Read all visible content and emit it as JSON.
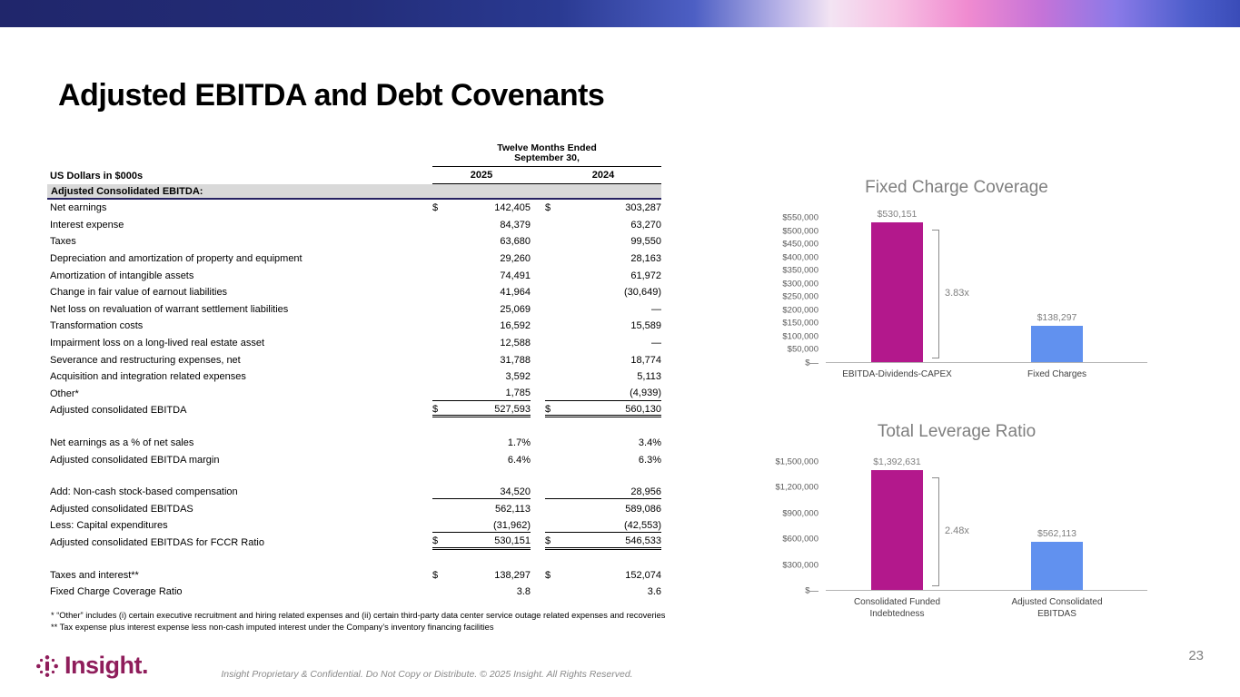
{
  "slide": {
    "title": "Adjusted EBITDA and Debt Covenants",
    "page_number": "23",
    "footer_text": "Insight Proprietary & Confidential. Do Not Copy or Distribute. © 2025 Insight. All Rights Reserved.",
    "logo_text": "Insight."
  },
  "colors": {
    "bar_magenta": "#b3188c",
    "bar_blue": "#6191ef",
    "logo_maroon": "#8f1d5b",
    "section_band": "#d9d9d9",
    "section_rule": "#262262"
  },
  "table": {
    "period_header": [
      "Twelve Months Ended",
      "September 30,"
    ],
    "units_label": "US Dollars in $000s",
    "years": [
      "2025",
      "2024"
    ],
    "rows": [
      {
        "type": "section",
        "label": "Adjusted Consolidated EBITDA:"
      },
      {
        "label": "Net earnings",
        "d25": "$",
        "v25": "142,405",
        "d24": "$",
        "v24": "303,287"
      },
      {
        "label": "Interest expense",
        "v25": "84,379",
        "v24": "63,270"
      },
      {
        "label": "Taxes",
        "v25": "63,680",
        "v24": "99,550"
      },
      {
        "label": "Depreciation and amortization of property and equipment",
        "v25": "29,260",
        "v24": "28,163"
      },
      {
        "label": "Amortization of intangible assets",
        "v25": "74,491",
        "v24": "61,972"
      },
      {
        "label": "Change in fair value of earnout liabilities",
        "v25": "41,964",
        "v24": "(30,649)"
      },
      {
        "label": "Net loss on revaluation of warrant settlement liabilities",
        "v25": "25,069",
        "v24": "—"
      },
      {
        "label": "Transformation costs",
        "v25": "16,592",
        "v24": "15,589"
      },
      {
        "label": "Impairment loss on a long-lived real estate asset",
        "v25": "12,588",
        "v24": "—"
      },
      {
        "label": "Severance and restructuring expenses, net",
        "v25": "31,788",
        "v24": "18,774"
      },
      {
        "label": "Acquisition and integration related expenses",
        "v25": "3,592",
        "v24": "5,113"
      },
      {
        "label": "Other*",
        "v25": "1,785",
        "v24": "(4,939)",
        "underline": "single"
      },
      {
        "label": "Adjusted consolidated EBITDA",
        "d25": "$",
        "v25": "527,593",
        "d24": "$",
        "v24": "560,130",
        "underline": "double"
      },
      {
        "type": "spacer"
      },
      {
        "label": "Net earnings as a % of net sales",
        "v25": "1.7%",
        "v24": "3.4%"
      },
      {
        "label": "Adjusted consolidated EBITDA margin",
        "v25": "6.4%",
        "v24": "6.3%"
      },
      {
        "type": "spacer"
      },
      {
        "label": "Add: Non-cash stock-based compensation",
        "v25": "34,520",
        "v24": "28,956",
        "underline": "single"
      },
      {
        "label": "Adjusted consolidated EBITDAS",
        "v25": "562,113",
        "v24": "589,086"
      },
      {
        "label": "Less: Capital expenditures",
        "v25": "(31,962)",
        "v24": "(42,553)",
        "underline": "single"
      },
      {
        "label": "Adjusted consolidated EBITDAS for FCCR Ratio",
        "d25": "$",
        "v25": "530,151",
        "d24": "$",
        "v24": "546,533",
        "underline": "double"
      },
      {
        "type": "spacer"
      },
      {
        "label": "Taxes and interest**",
        "d25": "$",
        "v25": "138,297",
        "d24": "$",
        "v24": "152,074"
      },
      {
        "label": "Fixed Charge Coverage Ratio",
        "v25": "3.8",
        "v24": "3.6"
      }
    ],
    "footnotes": [
      "* “Other” includes (i) certain executive recruitment and hiring related expenses and (ii) certain third-party data center service outage related expenses and recoveries",
      "** Tax expense plus interest expense less non-cash imputed interest under the Company’s inventory financing facilities"
    ]
  },
  "chart_data": [
    {
      "type": "bar",
      "title": "Fixed Charge Coverage",
      "y_ticks": [
        "$550,000",
        "$500,000",
        "$450,000",
        "$400,000",
        "$350,000",
        "$300,000",
        "$250,000",
        "$200,000",
        "$150,000",
        "$100,000",
        "$50,000",
        "$—"
      ],
      "ylim": [
        0,
        550000
      ],
      "grid": false,
      "ratio_label": "3.83x",
      "categories": [
        "EBITDA-Dividends-CAPEX",
        "Fixed Charges"
      ],
      "bars": [
        {
          "label": "EBITDA-Dividends-CAPEX",
          "value": 530151,
          "value_label": "$530,151",
          "color": "#b3188c"
        },
        {
          "label": "Fixed Charges",
          "value": 138297,
          "value_label": "$138,297",
          "color": "#6191ef"
        }
      ]
    },
    {
      "type": "bar",
      "title": "Total Leverage Ratio",
      "y_ticks": [
        "$1,500,000",
        "$1,200,000",
        "$900,000",
        "$600,000",
        "$300,000",
        "$—"
      ],
      "ylim": [
        0,
        1500000
      ],
      "grid": false,
      "ratio_label": "2.48x",
      "categories": [
        "Consolidated Funded Indebtedness",
        "Adjusted Consolidated EBITDAS"
      ],
      "bars": [
        {
          "label": "Consolidated Funded\nIndebtedness",
          "value": 1392631,
          "value_label": "$1,392,631",
          "color": "#b3188c"
        },
        {
          "label": "Adjusted Consolidated\nEBITDAS",
          "value": 562113,
          "value_label": "$562,113",
          "color": "#6191ef"
        }
      ]
    }
  ]
}
